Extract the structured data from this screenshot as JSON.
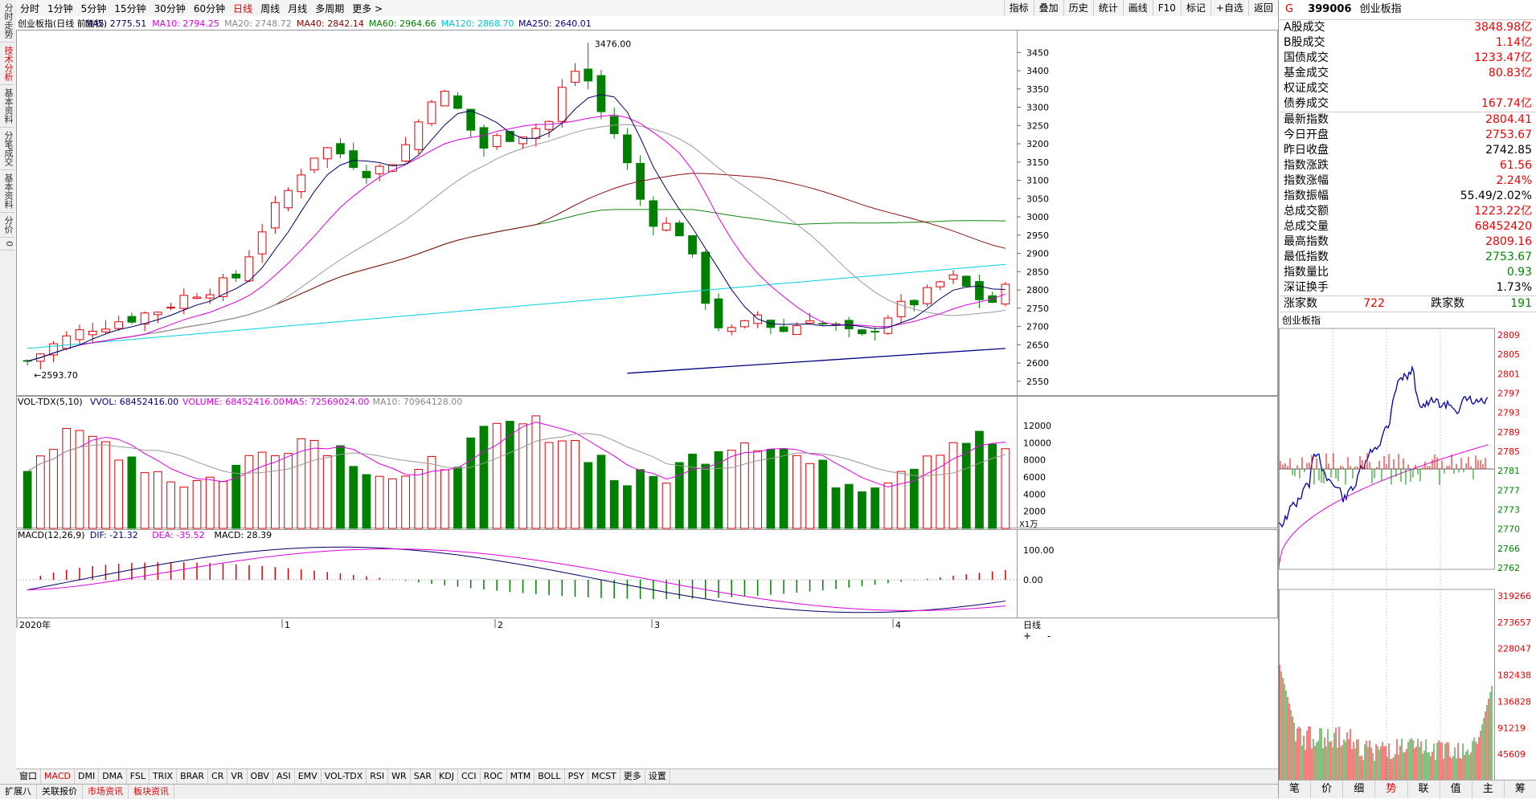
{
  "left_tabs": [
    {
      "label": "分时走势",
      "active": false
    },
    {
      "label": "技术分析",
      "active": true
    },
    {
      "label": "基本资料",
      "active": false
    },
    {
      "label": "分笔成交",
      "active": false
    },
    {
      "label": "基本资料",
      "active": false
    },
    {
      "label": "分价",
      "active": false
    },
    {
      "label": "0",
      "active": false
    }
  ],
  "periods": [
    {
      "label": "分时",
      "active": false
    },
    {
      "label": "1分钟",
      "active": false
    },
    {
      "label": "5分钟",
      "active": false
    },
    {
      "label": "15分钟",
      "active": false
    },
    {
      "label": "30分钟",
      "active": false
    },
    {
      "label": "60分钟",
      "active": false
    },
    {
      "label": "日线",
      "active": true
    },
    {
      "label": "周线",
      "active": false
    },
    {
      "label": "月线",
      "active": false
    },
    {
      "label": "多周期",
      "active": false
    },
    {
      "label": "更多 >",
      "active": false
    }
  ],
  "right_tools": [
    "指标",
    "叠加",
    "历史",
    "统计",
    "画线",
    "F10",
    "标记",
    "+自选",
    "返回"
  ],
  "main_legend": [
    {
      "text": "创业板指(日线 前复权)",
      "color": "#000"
    },
    {
      "text": "MA5: 2775.51",
      "color": "#000066"
    },
    {
      "text": "MA10: 2794.25",
      "color": "#e000e0"
    },
    {
      "text": "MA20: 2748.72",
      "color": "#888888"
    },
    {
      "text": "MA40: 2842.14",
      "color": "#8b0000"
    },
    {
      "text": "MA60: 2964.66",
      "color": "#008000"
    },
    {
      "text": "MA120: 2868.70",
      "color": "#00c8d0"
    },
    {
      "text": "MA250: 2640.01",
      "color": "#000080"
    }
  ],
  "price_axis": {
    "min": 2510,
    "max": 3510,
    "ticks": [
      3450,
      3400,
      3350,
      3300,
      3250,
      3200,
      3150,
      3100,
      3050,
      3000,
      2950,
      2900,
      2850,
      2800,
      2750,
      2700,
      2650,
      2600,
      2550
    ]
  },
  "price_marks": {
    "high_label": "3476.00",
    "low_label": "2593.70"
  },
  "vol_legend": [
    {
      "text": "VOL-TDX(5,10)",
      "color": "#000"
    },
    {
      "text": "VVOL: 68452416.00",
      "color": "#000080"
    },
    {
      "text": "VOLUME: 68452416.00",
      "color": "#e000e0"
    },
    {
      "text": "MA5: 72569024.00",
      "color": "#e000e0"
    },
    {
      "text": "MA10: 70964128.00",
      "color": "#888"
    }
  ],
  "vol_axis": {
    "ticks": [
      "12000",
      "10000",
      "8000",
      "6000",
      "4000",
      "2000"
    ],
    "unit": "X1万"
  },
  "macd_legend": [
    {
      "text": "MACD(12,26,9)",
      "color": "#000"
    },
    {
      "text": "DIF: -21.32",
      "color": "#000080"
    },
    {
      "text": "DEA: -35.52",
      "color": "#e000e0"
    },
    {
      "text": "MACD: 28.39",
      "color": "#000"
    }
  ],
  "macd_axis": {
    "ticks": [
      "100.00",
      "0.00"
    ]
  },
  "date_axis": [
    {
      "label": "2020年"
    },
    {
      "label": "1"
    },
    {
      "label": "2"
    },
    {
      "label": "3"
    },
    {
      "label": "4"
    }
  ],
  "period_label": "日线",
  "indicators": [
    "窗口",
    "MACD",
    "DMI",
    "DMA",
    "FSL",
    "TRIX",
    "BRAR",
    "CR",
    "VR",
    "OBV",
    "ASI",
    "EMV",
    "VOL-TDX",
    "RSI",
    "WR",
    "SAR",
    "KDJ",
    "CCI",
    "ROC",
    "MTM",
    "BOLL",
    "PSY",
    "MCST",
    "更多",
    "设置"
  ],
  "active_indicator": "MACD",
  "status_bar": [
    "扩展八",
    "关联报价",
    "市场资讯",
    "板块资讯"
  ],
  "side": {
    "code": "399006",
    "name": "创业板指",
    "flag": "G",
    "turnover": [
      {
        "label": "A股成交",
        "value": "3848.98亿",
        "cls": "red"
      },
      {
        "label": "B股成交",
        "value": "1.14亿",
        "cls": "red"
      },
      {
        "label": "国债成交",
        "value": "1233.47亿",
        "cls": "red"
      },
      {
        "label": "基金成交",
        "value": "80.83亿",
        "cls": "red"
      },
      {
        "label": "权证成交",
        "value": "",
        "cls": "red"
      },
      {
        "label": "债券成交",
        "value": "167.74亿",
        "cls": "red"
      }
    ],
    "quote": [
      {
        "label": "最新指数",
        "value": "2804.41",
        "cls": "red"
      },
      {
        "label": "今日开盘",
        "value": "2753.67",
        "cls": "red"
      },
      {
        "label": "昨日收盘",
        "value": "2742.85",
        "cls": "blk"
      },
      {
        "label": "指数涨跌",
        "value": "61.56",
        "cls": "red"
      },
      {
        "label": "指数涨幅",
        "value": "2.24%",
        "cls": "red"
      },
      {
        "label": "指数振幅",
        "value": "55.49/2.02%",
        "cls": "blk"
      },
      {
        "label": "总成交额",
        "value": "1223.22亿",
        "cls": "red"
      },
      {
        "label": "总成交量",
        "value": "68452420",
        "cls": "red"
      },
      {
        "label": "最高指数",
        "value": "2809.16",
        "cls": "red"
      },
      {
        "label": "最低指数",
        "value": "2753.67",
        "cls": "green"
      },
      {
        "label": "指数量比",
        "value": "0.93",
        "cls": "green"
      },
      {
        "label": "深证换手",
        "value": "1.73%",
        "cls": "blk"
      }
    ],
    "breadth": {
      "up_label": "涨家数",
      "up": "722",
      "down_label": "跌家数",
      "down": "191"
    },
    "mini_title": "创业板指",
    "mini_axis": [
      "2809",
      "2805",
      "2801",
      "2797",
      "2793",
      "2789",
      "2785",
      "2781",
      "2777",
      "2773",
      "2770",
      "2766",
      "2762"
    ],
    "mini_vol_axis": [
      "319266",
      "273657",
      "228047",
      "182438",
      "136828",
      "91219",
      "45609"
    ],
    "nav": [
      "笔",
      "价",
      "细",
      "势",
      "联",
      "值",
      "主",
      "筹"
    ],
    "nav_active": "势"
  },
  "colors": {
    "up": "#e00000",
    "down": "#008000",
    "ma5": "#000066",
    "ma10": "#e000e0",
    "ma20": "#999999",
    "ma40": "#8b1010",
    "ma60": "#118811",
    "ma120": "#00d0e0",
    "ma250": "#000080"
  }
}
